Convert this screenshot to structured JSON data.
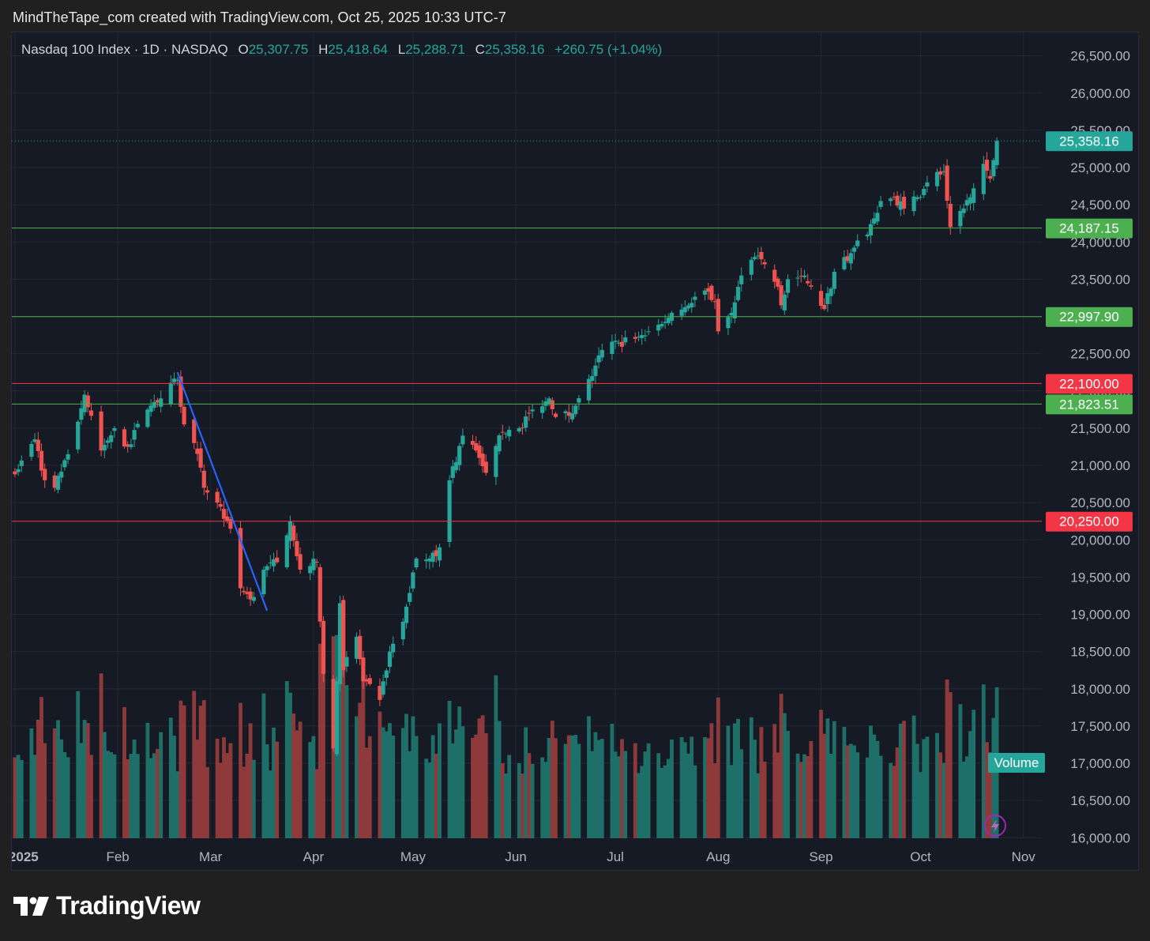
{
  "header": {
    "caption": "MindTheTape_com created with TradingView.com, Oct 25, 2025 10:33 UTC-7"
  },
  "legend": {
    "symbol": "Nasdaq 100 Index · 1D · NASDAQ",
    "o_key": "O",
    "o_val": "25,307.75",
    "h_key": "H",
    "h_val": "25,418.64",
    "l_key": "L",
    "l_val": "25,288.71",
    "c_key": "C",
    "c_val": "25,358.16",
    "change": "+260.75 (+1.04%)"
  },
  "colors": {
    "background": "#161a25",
    "up": "#26a69a",
    "down": "#ef5350",
    "support_line": "#4caf50",
    "resistance_line": "#f23645",
    "trendline": "#2962ff",
    "last_price": "#26a69a"
  },
  "brand": {
    "name": "TradingView"
  },
  "chart_data": {
    "type": "candlestick",
    "symbol": "Nasdaq 100 Index",
    "interval": "1D",
    "exchange": "NASDAQ",
    "ylim": [
      15650,
      26550
    ],
    "y_ticks": [
      "26,500.00",
      "26,000.00",
      "25,500.00",
      "25,000.00",
      "24,500.00",
      "24,000.00",
      "23,500.00",
      "23,000.00",
      "22,500.00",
      "22,000.00",
      "21,500.00",
      "21,000.00",
      "20,500.00",
      "20,000.00",
      "19,500.00",
      "19,000.00",
      "18,500.00",
      "18,000.00",
      "17,500.00",
      "17,000.00",
      "16,500.00",
      "16,000.00"
    ],
    "x_ticks": [
      "2025",
      "Feb",
      "Mar",
      "Apr",
      "May",
      "Jun",
      "Jul",
      "Aug",
      "Sep",
      "Oct",
      "Nov"
    ],
    "grid": true,
    "last_price": {
      "value": 25358.16,
      "label": "25,358.16"
    },
    "horizontal_levels": [
      {
        "value": 24187.15,
        "label": "24,187.15",
        "kind": "support"
      },
      {
        "value": 22997.9,
        "label": "22,997.90",
        "kind": "support"
      },
      {
        "value": 22100.0,
        "label": "22,100.00",
        "kind": "resistance"
      },
      {
        "value": 21823.51,
        "label": "21,823.51",
        "kind": "support"
      },
      {
        "value": 20250.0,
        "label": "20,250.00",
        "kind": "resistance"
      }
    ],
    "trendline": {
      "start": {
        "date": "2025-02-19",
        "price": 22250
      },
      "end": {
        "date": "2025-03-18",
        "price": 19050
      }
    },
    "volume_label": "Volume",
    "closes": [
      {
        "date": "2025-01-02",
        "close": 20950
      },
      {
        "date": "2025-01-07",
        "close": 21350
      },
      {
        "date": "2025-01-10",
        "close": 20800
      },
      {
        "date": "2025-01-13",
        "close": 20700
      },
      {
        "date": "2025-01-17",
        "close": 21150
      },
      {
        "date": "2025-01-22",
        "close": 21950
      },
      {
        "date": "2025-01-27",
        "close": 21200
      },
      {
        "date": "2025-01-31",
        "close": 21500
      },
      {
        "date": "2025-02-04",
        "close": 21250
      },
      {
        "date": "2025-02-10",
        "close": 21750
      },
      {
        "date": "2025-02-14",
        "close": 21900
      },
      {
        "date": "2025-02-19",
        "close": 22150
      },
      {
        "date": "2025-02-21",
        "close": 21550
      },
      {
        "date": "2025-02-24",
        "close": 21300
      },
      {
        "date": "2025-02-27",
        "close": 20700
      },
      {
        "date": "2025-03-03",
        "close": 20500
      },
      {
        "date": "2025-03-07",
        "close": 20150
      },
      {
        "date": "2025-03-10",
        "close": 19350
      },
      {
        "date": "2025-03-13",
        "close": 19200
      },
      {
        "date": "2025-03-17",
        "close": 19600
      },
      {
        "date": "2025-03-21",
        "close": 19700
      },
      {
        "date": "2025-03-25",
        "close": 20250
      },
      {
        "date": "2025-03-28",
        "close": 19600
      },
      {
        "date": "2025-04-02",
        "close": 19700
      },
      {
        "date": "2025-04-04",
        "close": 18200
      },
      {
        "date": "2025-04-07",
        "close": 17200
      },
      {
        "date": "2025-04-09",
        "close": 19150
      },
      {
        "date": "2025-04-10",
        "close": 18250
      },
      {
        "date": "2025-04-14",
        "close": 18700
      },
      {
        "date": "2025-04-16",
        "close": 18100
      },
      {
        "date": "2025-04-21",
        "close": 17850
      },
      {
        "date": "2025-04-24",
        "close": 18500
      },
      {
        "date": "2025-04-28",
        "close": 18900
      },
      {
        "date": "2025-05-02",
        "close": 19750
      },
      {
        "date": "2025-05-06",
        "close": 19750
      },
      {
        "date": "2025-05-09",
        "close": 19900
      },
      {
        "date": "2025-05-12",
        "close": 20800
      },
      {
        "date": "2025-05-16",
        "close": 21400
      },
      {
        "date": "2025-05-21",
        "close": 21100
      },
      {
        "date": "2025-05-23",
        "close": 20900
      },
      {
        "date": "2025-05-28",
        "close": 21450
      },
      {
        "date": "2025-06-02",
        "close": 21500
      },
      {
        "date": "2025-06-06",
        "close": 21750
      },
      {
        "date": "2025-06-11",
        "close": 21900
      },
      {
        "date": "2025-06-13",
        "close": 21650
      },
      {
        "date": "2025-06-18",
        "close": 21700
      },
      {
        "date": "2025-06-24",
        "close": 22200
      },
      {
        "date": "2025-06-27",
        "close": 22550
      },
      {
        "date": "2025-07-02",
        "close": 22650
      },
      {
        "date": "2025-07-07",
        "close": 22700
      },
      {
        "date": "2025-07-11",
        "close": 22800
      },
      {
        "date": "2025-07-15",
        "close": 22900
      },
      {
        "date": "2025-07-18",
        "close": 23050
      },
      {
        "date": "2025-07-23",
        "close": 23150
      },
      {
        "date": "2025-07-28",
        "close": 23350
      },
      {
        "date": "2025-07-31",
        "close": 23200
      },
      {
        "date": "2025-08-01",
        "close": 22800
      },
      {
        "date": "2025-08-05",
        "close": 23050
      },
      {
        "date": "2025-08-08",
        "close": 23550
      },
      {
        "date": "2025-08-12",
        "close": 23800
      },
      {
        "date": "2025-08-15",
        "close": 23700
      },
      {
        "date": "2025-08-19",
        "close": 23400
      },
      {
        "date": "2025-08-20",
        "close": 23150
      },
      {
        "date": "2025-08-22",
        "close": 23500
      },
      {
        "date": "2025-08-27",
        "close": 23550
      },
      {
        "date": "2025-08-29",
        "close": 23400
      },
      {
        "date": "2025-09-02",
        "close": 23100
      },
      {
        "date": "2025-09-05",
        "close": 23600
      },
      {
        "date": "2025-09-10",
        "close": 23850
      },
      {
        "date": "2025-09-15",
        "close": 24100
      },
      {
        "date": "2025-09-19",
        "close": 24550
      },
      {
        "date": "2025-09-23",
        "close": 24600
      },
      {
        "date": "2025-09-26",
        "close": 24450
      },
      {
        "date": "2025-09-30",
        "close": 24600
      },
      {
        "date": "2025-10-03",
        "close": 24800
      },
      {
        "date": "2025-10-08",
        "close": 24950
      },
      {
        "date": "2025-10-10",
        "close": 24200
      },
      {
        "date": "2025-10-14",
        "close": 24450
      },
      {
        "date": "2025-10-16",
        "close": 24600
      },
      {
        "date": "2025-10-20",
        "close": 25050
      },
      {
        "date": "2025-10-22",
        "close": 24850
      },
      {
        "date": "2025-10-23",
        "close": 25100
      },
      {
        "date": "2025-10-24",
        "close": 25358.16
      }
    ]
  }
}
